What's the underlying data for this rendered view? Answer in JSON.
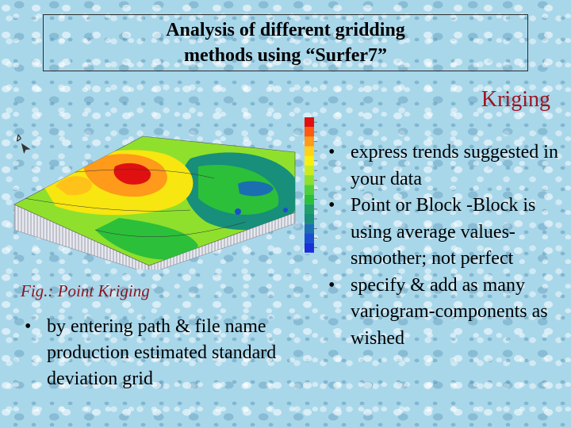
{
  "title": {
    "line1": "Analysis of different gridding",
    "line2": "methods using “Surfer7”"
  },
  "heading": "Kriging",
  "figure": {
    "caption": "Fig.: Point Kriging",
    "colors": {
      "high": "#e01010",
      "upper": "#ff9a1a",
      "mid_high": "#f7e60f",
      "mid": "#8fe02c",
      "mid_low": "#2cbf3a",
      "low": "#178f7a",
      "lowest": "#1830d8"
    },
    "legend_colors": [
      "#e01010",
      "#ff5a10",
      "#ff9a1a",
      "#ffd21a",
      "#f7f00f",
      "#c8ec22",
      "#8fe02c",
      "#4fd03a",
      "#2cbf3a",
      "#1fa06a",
      "#178f7a",
      "#1a6fb0",
      "#1a4ed0",
      "#1830d8"
    ]
  },
  "left_bullets": [
    "by entering path & file name production estimated standard deviation grid"
  ],
  "right_bullets": [
    "express trends suggested in your data",
    "Point or Block -Block is using average values-smoother; not perfect",
    "specify & add as many variogram-components as wished"
  ]
}
